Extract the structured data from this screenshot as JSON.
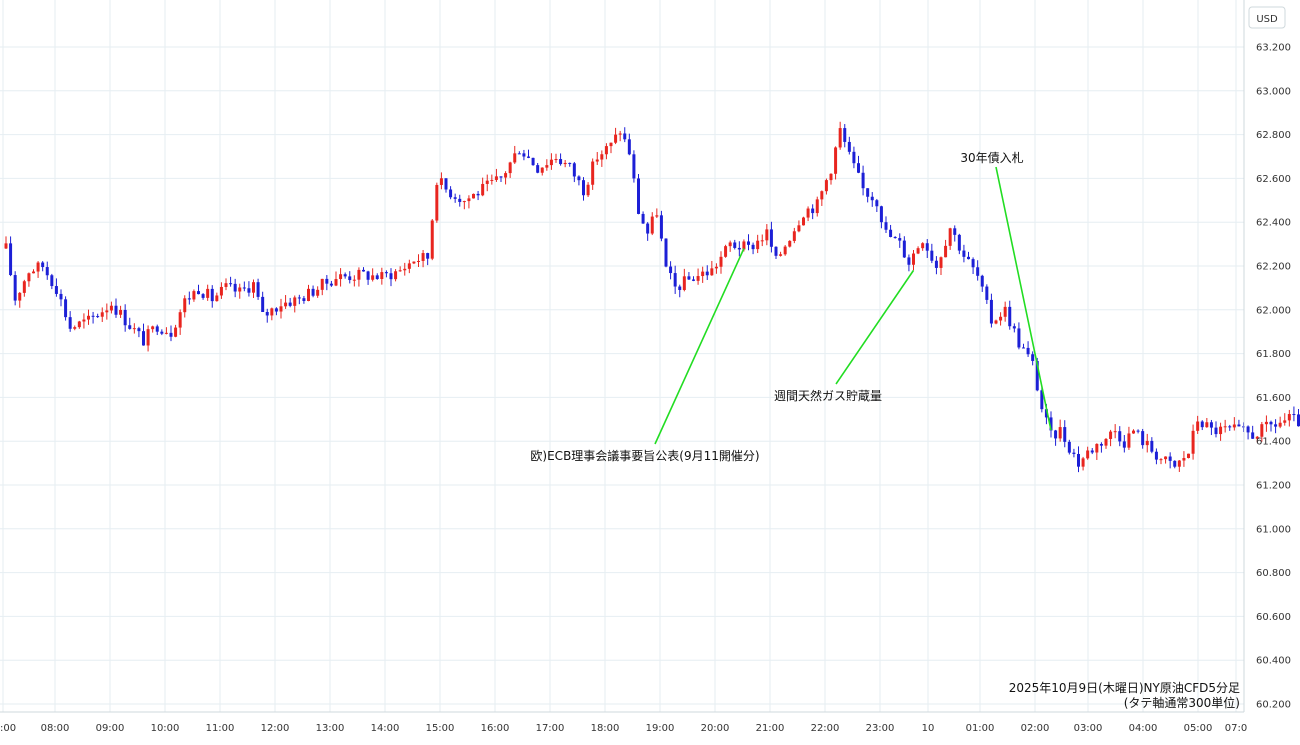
{
  "chart_data": {
    "type": "candlestick",
    "currency_label": "USD",
    "caption_line1": "2025年10月9日(木曜日)NY原油CFD5分足",
    "caption_line2": "(タテ軸通常300単位)",
    "y_ticks": [
      "63.200",
      "63.000",
      "62.800",
      "62.600",
      "62.400",
      "62.200",
      "62.000",
      "61.800",
      "61.600",
      "61.400",
      "61.200",
      "61.000",
      "60.800",
      "60.600",
      "60.400",
      "60.200"
    ],
    "ylim": [
      60.16,
      63.3
    ],
    "x_ticks": [
      ":00",
      "08:00",
      "09:00",
      "10:00",
      "11:00",
      "12:00",
      "13:00",
      "14:00",
      "15:00",
      "16:00",
      "17:00",
      "18:00",
      "19:00",
      "20:00",
      "21:00",
      "22:00",
      "23:00",
      "10",
      "01:00",
      "02:00",
      "03:00",
      "04:00",
      "05:00",
      "07:0"
    ],
    "grid": true,
    "colors": {
      "up": "#e8251f",
      "down": "#1c1fd6",
      "grid": "#e6eef2",
      "annotation_line": "#22dd22"
    },
    "annotations": [
      {
        "label": "欧)ECB理事会議事要旨公表(9月11開催分)",
        "time": "20:25",
        "price": 62.28
      },
      {
        "label": "週間天然ガス貯蔵量",
        "time": "23:30",
        "price": 62.18
      },
      {
        "label": "30年債入札",
        "time": "02:00",
        "price": 61.45
      }
    ],
    "anchors": [
      [
        "07:00",
        62.28
      ],
      [
        "07:10",
        62.05
      ],
      [
        "07:25",
        62.18
      ],
      [
        "07:40",
        62.2
      ],
      [
        "07:55",
        62.1
      ],
      [
        "08:10",
        61.92
      ],
      [
        "08:30",
        61.95
      ],
      [
        "08:55",
        62.03
      ],
      [
        "09:15",
        61.93
      ],
      [
        "09:30",
        61.86
      ],
      [
        "09:45",
        61.93
      ],
      [
        "10:00",
        61.9
      ],
      [
        "10:15",
        62.04
      ],
      [
        "10:30",
        62.1
      ],
      [
        "10:45",
        62.05
      ],
      [
        "11:00",
        62.1
      ],
      [
        "11:15",
        62.08
      ],
      [
        "11:30",
        62.12
      ],
      [
        "11:40",
        61.97
      ],
      [
        "12:00",
        62.03
      ],
      [
        "12:20",
        62.05
      ],
      [
        "12:40",
        62.1
      ],
      [
        "13:00",
        62.15
      ],
      [
        "13:30",
        62.16
      ],
      [
        "13:50",
        62.15
      ],
      [
        "14:10",
        62.18
      ],
      [
        "14:25",
        62.23
      ],
      [
        "14:40",
        62.24
      ],
      [
        "14:50",
        62.6
      ],
      [
        "15:00",
        62.55
      ],
      [
        "15:20",
        62.5
      ],
      [
        "15:40",
        62.55
      ],
      [
        "16:00",
        62.6
      ],
      [
        "16:20",
        62.74
      ],
      [
        "16:40",
        62.65
      ],
      [
        "17:00",
        62.7
      ],
      [
        "17:15",
        62.65
      ],
      [
        "17:30",
        62.55
      ],
      [
        "17:45",
        62.7
      ],
      [
        "18:00",
        62.75
      ],
      [
        "18:10",
        62.82
      ],
      [
        "18:20",
        62.72
      ],
      [
        "18:30",
        62.45
      ],
      [
        "18:40",
        62.35
      ],
      [
        "18:50",
        62.45
      ],
      [
        "19:00",
        62.18
      ],
      [
        "19:10",
        62.1
      ],
      [
        "19:30",
        62.15
      ],
      [
        "19:50",
        62.18
      ],
      [
        "20:10",
        62.3
      ],
      [
        "20:30",
        62.28
      ],
      [
        "20:50",
        62.35
      ],
      [
        "21:00",
        62.22
      ],
      [
        "21:10",
        62.3
      ],
      [
        "21:30",
        62.45
      ],
      [
        "21:45",
        62.48
      ],
      [
        "22:00",
        62.65
      ],
      [
        "22:10",
        62.82
      ],
      [
        "22:20",
        62.7
      ],
      [
        "22:35",
        62.55
      ],
      [
        "22:50",
        62.5
      ],
      [
        "23:00",
        62.35
      ],
      [
        "23:15",
        62.3
      ],
      [
        "23:25",
        62.22
      ],
      [
        "23:40",
        62.33
      ],
      [
        "23:55",
        62.2
      ],
      [
        "00:10",
        62.38
      ],
      [
        "00:25",
        62.25
      ],
      [
        "00:40",
        62.15
      ],
      [
        "00:55",
        61.95
      ],
      [
        "01:10",
        62.0
      ],
      [
        "01:25",
        61.85
      ],
      [
        "01:40",
        61.75
      ],
      [
        "01:50",
        61.55
      ],
      [
        "02:00",
        61.42
      ],
      [
        "02:10",
        61.45
      ],
      [
        "02:30",
        61.3
      ],
      [
        "02:40",
        61.35
      ],
      [
        "02:55",
        61.4
      ],
      [
        "03:10",
        61.45
      ],
      [
        "03:20",
        61.4
      ],
      [
        "03:30",
        61.45
      ],
      [
        "03:45",
        61.38
      ],
      [
        "04:00",
        61.32
      ],
      [
        "04:15",
        61.28
      ],
      [
        "04:30",
        61.35
      ],
      [
        "04:40",
        61.5
      ],
      [
        "04:55",
        61.45
      ],
      [
        "05:20",
        61.45
      ],
      [
        "05:40",
        61.43
      ],
      [
        "06:00",
        61.47
      ],
      [
        "06:20",
        61.5
      ],
      [
        "06:35",
        61.48
      ]
    ]
  }
}
